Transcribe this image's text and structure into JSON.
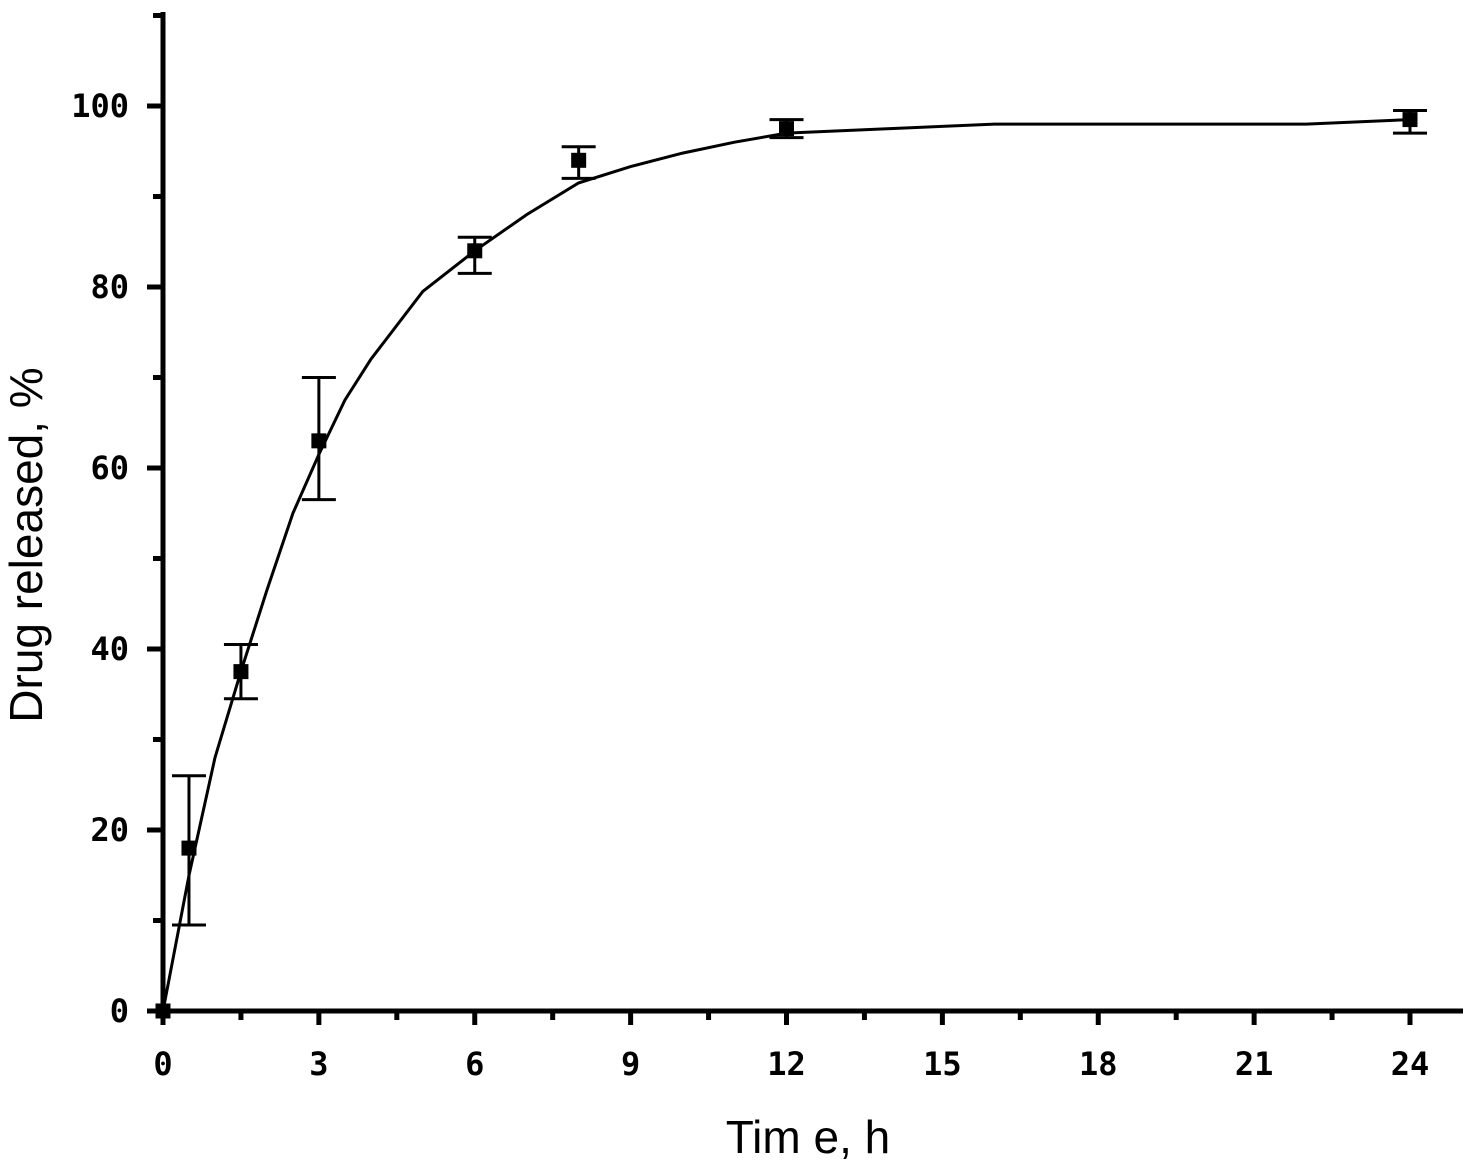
{
  "chart_data": {
    "type": "scatter",
    "title": "",
    "xlabel": "Tim e, h",
    "ylabel": "Drug released, %",
    "xlim": [
      0,
      24
    ],
    "ylim": [
      0,
      110
    ],
    "x_ticks": [
      0,
      3,
      6,
      9,
      12,
      15,
      18,
      21,
      24
    ],
    "x_tick_labels": [
      "0",
      "3",
      "6",
      "9",
      "12",
      "15",
      "18",
      "21",
      "24"
    ],
    "x_minor_ticks": [
      1.5,
      4.5,
      7.5,
      10.5,
      13.5,
      16.5,
      19.5,
      22.5
    ],
    "y_ticks": [
      0,
      20,
      40,
      60,
      80,
      100
    ],
    "y_tick_labels": [
      "0",
      "20",
      "40",
      "60",
      "80",
      "100"
    ],
    "y_minor_ticks": [
      10,
      30,
      50,
      70,
      90,
      110
    ],
    "grid": false,
    "legend": "none",
    "series": [
      {
        "x": [
          0,
          0.5,
          1.5,
          3,
          6,
          8,
          12,
          24
        ],
        "y": [
          0,
          18,
          37.5,
          63,
          84,
          94,
          97.5,
          98.5
        ],
        "err_upper": [
          0,
          26,
          40.5,
          70,
          85.5,
          95.5,
          98.5,
          99.5
        ],
        "err_lower": [
          0,
          9.5,
          34.5,
          56.5,
          81.5,
          92,
          96.5,
          97
        ]
      }
    ],
    "fit_curve": {
      "x": [
        0,
        0.5,
        1,
        1.5,
        2,
        2.5,
        3,
        3.5,
        4,
        5,
        6,
        7,
        8,
        9,
        10,
        11,
        12,
        14,
        16,
        18,
        20,
        22,
        24
      ],
      "y": [
        0,
        15,
        28,
        37.5,
        46.5,
        55,
        61.5,
        67.5,
        72,
        79.5,
        84,
        88,
        91.5,
        93.3,
        94.8,
        96,
        97,
        97.5,
        98,
        98,
        98,
        98,
        98.5
      ]
    }
  }
}
